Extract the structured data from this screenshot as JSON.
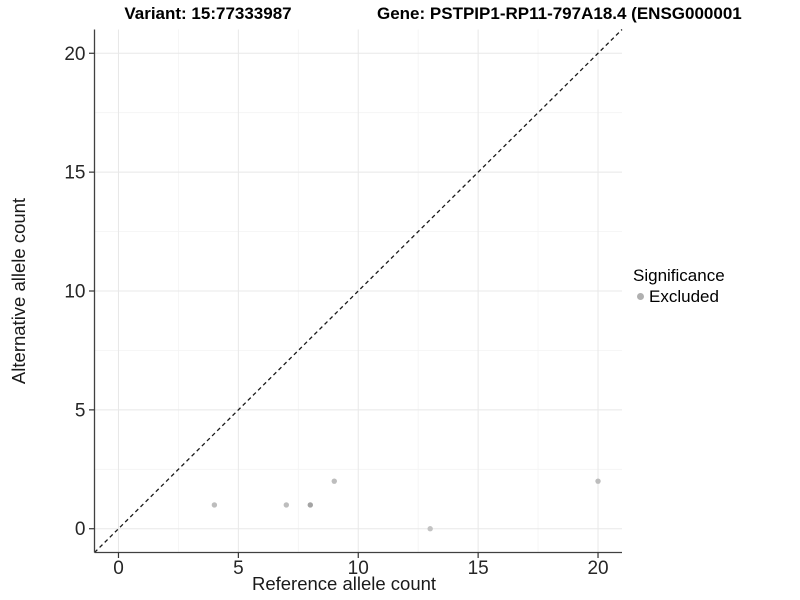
{
  "chart_data": {
    "type": "scatter",
    "title_left": "Variant: 15:77333987",
    "title_right": "Gene: PSTPIP1-RP11-797A18.4 (ENSG000001",
    "xlabel": "Reference allele count",
    "ylabel": "Alternative allele count",
    "xlim": [
      -1,
      21
    ],
    "ylim": [
      -1,
      21
    ],
    "x_ticks": [
      0,
      5,
      10,
      15,
      20
    ],
    "y_ticks": [
      0,
      5,
      10,
      15,
      20
    ],
    "x_minor": [
      2.5,
      7.5,
      12.5,
      17.5
    ],
    "y_minor": [
      2.5,
      7.5,
      12.5,
      17.5
    ],
    "grid": "major and minor gridlines, very light gray, white panel background",
    "points": [
      {
        "x": 4,
        "y": 1,
        "color": "#bdbdbd"
      },
      {
        "x": 7,
        "y": 1,
        "color": "#bdbdbd"
      },
      {
        "x": 8,
        "y": 1,
        "color": "#a4a4a4"
      },
      {
        "x": 9,
        "y": 2,
        "color": "#bdbdbd"
      },
      {
        "x": 13,
        "y": 0,
        "color": "#c3c3c3"
      },
      {
        "x": 20,
        "y": 2,
        "color": "#bdbdbd"
      }
    ],
    "identity_line": {
      "style": "dashed",
      "x1": -1,
      "y1": -1,
      "x2": 21,
      "y2": 21,
      "color": "#1a1a1a"
    },
    "legend": {
      "title": "Significance",
      "position": "right",
      "entries": [
        {
          "label": "Excluded",
          "color": "#b0b0b0"
        }
      ]
    }
  },
  "palette": {
    "grid_major": "#e8e8e8",
    "grid_minor": "#f4f4f4",
    "axis_line": "#404040",
    "tick_mark": "#333333",
    "tick_text": "#262626",
    "axis_title_text": "#1a1a1a",
    "title_text": "#000000",
    "background": "#ffffff"
  }
}
